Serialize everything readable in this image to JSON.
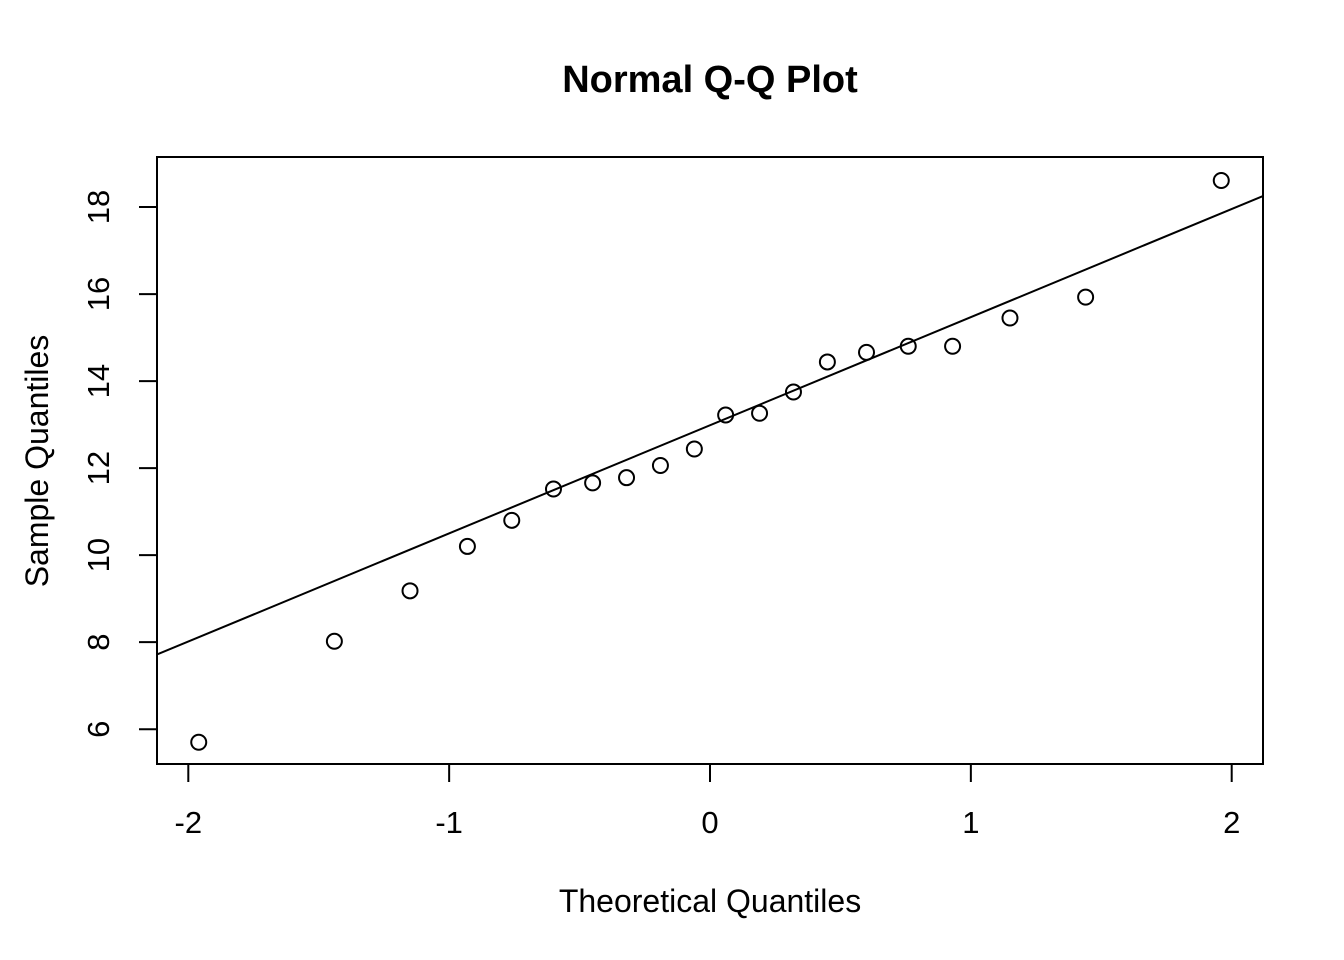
{
  "chart_data": {
    "type": "scatter",
    "title": "Normal Q-Q Plot",
    "xlabel": "Theoretical Quantiles",
    "ylabel": "Sample Quantiles",
    "xlim": [
      -2.12,
      2.12
    ],
    "ylim": [
      5.2,
      19.15
    ],
    "xticks": [
      -2,
      -1,
      0,
      1,
      2
    ],
    "xtick_labels": [
      "-2",
      "-1",
      "0",
      "1",
      "2"
    ],
    "yticks": [
      6,
      8,
      10,
      12,
      14,
      16,
      18
    ],
    "ytick_labels": [
      "6",
      "8",
      "10",
      "12",
      "14",
      "16",
      "18"
    ],
    "grid": false,
    "series": [
      {
        "marker": "open-circle",
        "color": "#000000",
        "x": [
          -1.96,
          -1.44,
          -1.15,
          -0.93,
          -0.76,
          -0.6,
          -0.45,
          -0.32,
          -0.19,
          -0.06,
          0.06,
          0.19,
          0.32,
          0.45,
          0.6,
          0.76,
          0.93,
          1.15,
          1.44,
          1.96
        ],
        "y": [
          5.7,
          8.02,
          9.18,
          10.2,
          10.8,
          11.52,
          11.66,
          11.78,
          12.06,
          12.44,
          13.22,
          13.26,
          13.75,
          14.44,
          14.66,
          14.8,
          14.8,
          15.45,
          15.93,
          18.61
        ]
      }
    ],
    "reference_line": {
      "color": "#000000",
      "intercept": 12.985,
      "slope": 2.485
    }
  }
}
